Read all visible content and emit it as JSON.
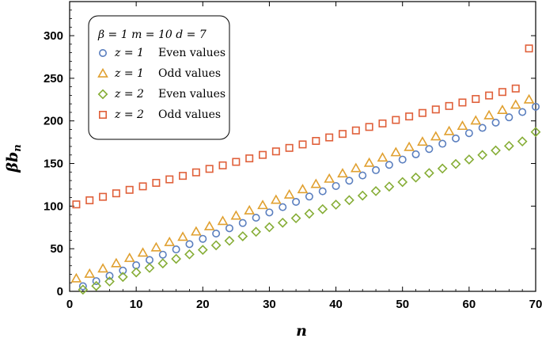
{
  "chart_data": {
    "type": "scatter",
    "title": "",
    "xlabel": "n",
    "ylabel": "βb",
    "ylabel_sub": "n",
    "xlim": [
      0,
      70
    ],
    "ylim": [
      0,
      340
    ],
    "xticks": [
      0,
      10,
      20,
      30,
      40,
      50,
      60,
      70
    ],
    "yticks": [
      0,
      50,
      100,
      150,
      200,
      250,
      300
    ],
    "grid": false,
    "legend_position": "top-left",
    "legend_header": "β = 1   m = 10   d = 7",
    "series": [
      {
        "name": "z = 1   Even values",
        "label_z": "z = 1",
        "label_kind": "Even values",
        "marker": "circle",
        "color": "#5b7fbf",
        "x": [
          2,
          4,
          6,
          8,
          10,
          12,
          14,
          16,
          18,
          20,
          22,
          24,
          26,
          28,
          30,
          32,
          34,
          36,
          38,
          40,
          42,
          44,
          46,
          48,
          50,
          52,
          54,
          56,
          58,
          60,
          62,
          64,
          66,
          68,
          70
        ],
        "y": [
          6,
          12,
          18.2,
          24.4,
          30.6,
          36.8,
          43,
          49.2,
          55.4,
          61.6,
          67.8,
          74,
          80.2,
          86.4,
          92.6,
          98.8,
          105,
          111.2,
          117.4,
          123.6,
          129.8,
          136,
          142.2,
          148.4,
          154.6,
          160.8,
          167,
          173.2,
          179.4,
          185.6,
          191.8,
          198,
          204.2,
          210.4,
          216.6
        ]
      },
      {
        "name": "z = 1   Odd values",
        "label_z": "z = 1",
        "label_kind": "Odd values",
        "marker": "triangle",
        "color": "#e0a030",
        "x": [
          1,
          3,
          5,
          7,
          9,
          11,
          13,
          15,
          17,
          19,
          21,
          23,
          25,
          27,
          29,
          31,
          33,
          35,
          37,
          39,
          41,
          43,
          45,
          47,
          49,
          51,
          53,
          55,
          57,
          59,
          61,
          63,
          65,
          67,
          69
        ],
        "y": [
          15,
          20.5,
          26.6,
          32.8,
          39,
          45.2,
          51.4,
          57.6,
          63.8,
          70,
          76.2,
          82.4,
          88.6,
          94.8,
          101,
          107.2,
          113.4,
          119.6,
          125.8,
          132,
          138.2,
          144.4,
          150.6,
          156.8,
          163,
          169.2,
          175.4,
          181.6,
          187.8,
          194,
          200.2,
          206.4,
          212.6,
          218.8,
          225
        ]
      },
      {
        "name": "z = 2   Even values",
        "label_z": "z = 2",
        "label_kind": "Even values",
        "marker": "diamond",
        "color": "#86ad36",
        "x": [
          2,
          4,
          6,
          8,
          10,
          12,
          14,
          16,
          18,
          20,
          22,
          24,
          26,
          28,
          30,
          32,
          34,
          36,
          38,
          40,
          42,
          44,
          46,
          48,
          50,
          52,
          54,
          56,
          58,
          60,
          62,
          64,
          66,
          68,
          70
        ],
        "y": [
          2,
          6.3,
          11.6,
          16.9,
          22.2,
          27.5,
          32.8,
          38.1,
          43.4,
          48.7,
          54,
          59.3,
          64.6,
          69.9,
          75.2,
          80.5,
          85.8,
          91.1,
          96.4,
          101.7,
          107,
          112.3,
          117.6,
          122.9,
          128.2,
          133.5,
          138.8,
          144.1,
          149.4,
          154.7,
          160,
          165.3,
          170.6,
          175.9,
          187
        ]
      },
      {
        "name": "z = 2   Odd values",
        "label_z": "z = 2",
        "label_kind": "Odd values",
        "marker": "square",
        "color": "#e0603a",
        "x": [
          1,
          3,
          5,
          7,
          9,
          11,
          13,
          15,
          17,
          19,
          21,
          23,
          25,
          27,
          29,
          31,
          33,
          35,
          37,
          39,
          41,
          43,
          45,
          47,
          49,
          51,
          53,
          55,
          57,
          59,
          61,
          63,
          65,
          67,
          69
        ],
        "y": [
          102,
          106.8,
          110.9,
          115,
          119.1,
          123.2,
          127.3,
          131.4,
          135.5,
          139.6,
          143.7,
          147.8,
          151.9,
          156,
          160.1,
          164.2,
          168.3,
          172.4,
          176.5,
          180.6,
          184.7,
          188.8,
          192.9,
          197,
          201.1,
          205.2,
          209.3,
          213.4,
          217.5,
          221.6,
          225.7,
          229.8,
          233.9,
          238,
          285
        ]
      }
    ]
  }
}
